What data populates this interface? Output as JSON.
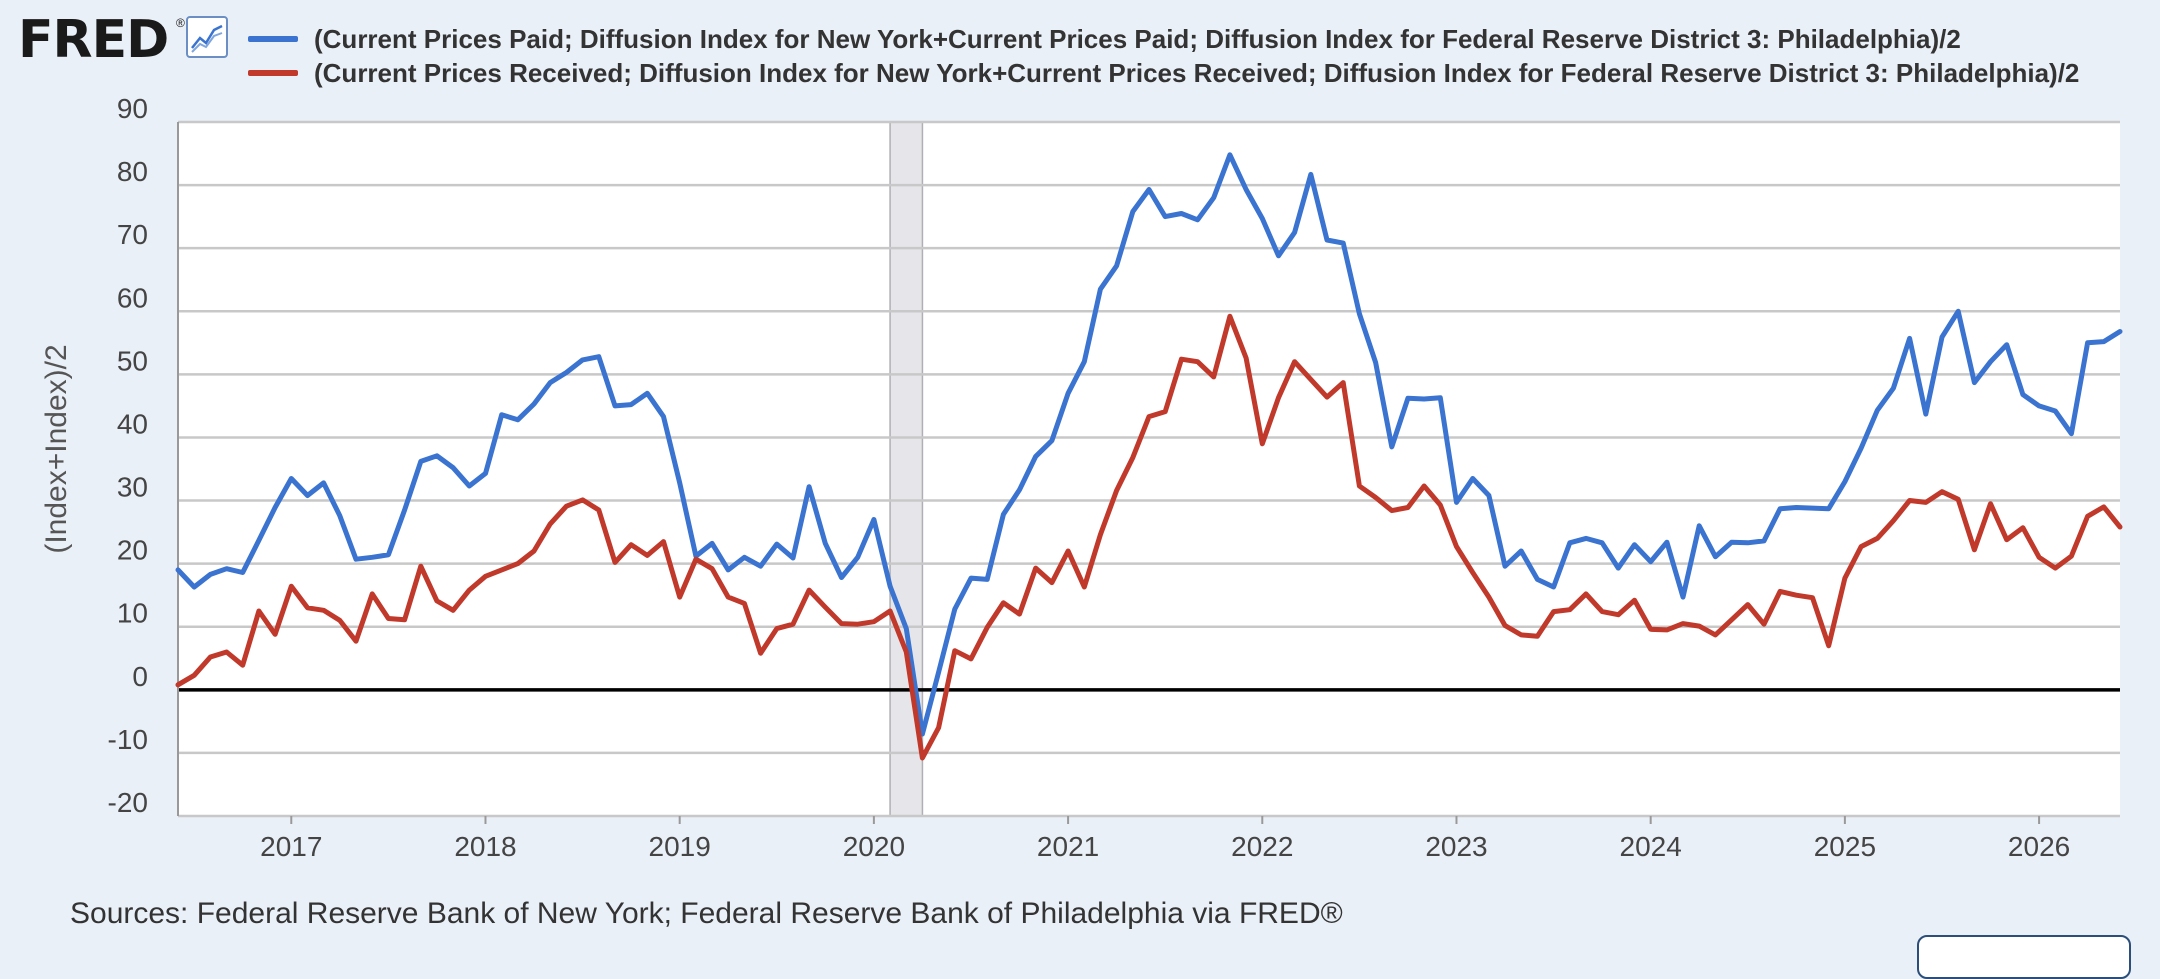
{
  "header": {
    "logo_text": "FRED",
    "registered_mark": "®",
    "graph_icon": "line-graph-icon"
  },
  "colors": {
    "paid": "#3a73d0",
    "received": "#c0392b",
    "grid": "#c8c8c8",
    "plot_bg": "#ffffff",
    "recession": "#e6e6ea",
    "page_bg": "#eaf0f8"
  },
  "chart_data": {
    "type": "line",
    "title": "",
    "xlabel": "",
    "ylabel": "(Index+Index)/2",
    "ylim": [
      -20,
      90
    ],
    "yticks": [
      90,
      80,
      70,
      60,
      50,
      40,
      30,
      20,
      10,
      0,
      -10,
      -20
    ],
    "xlim": [
      "2016-06-01",
      "2026-06-01"
    ],
    "xticks": [
      "2017",
      "2018",
      "2019",
      "2020",
      "2021",
      "2022",
      "2023",
      "2024",
      "2025",
      "2026"
    ],
    "grid": true,
    "zero_line": true,
    "legend_position": "top",
    "recession_shading": [
      {
        "start": "2020-02-01",
        "end": "2020-04-01"
      }
    ],
    "series": [
      {
        "name": "(Current Prices Paid; Diffusion Index for New York+Current Prices Paid; Diffusion Index for Federal Reserve District 3: Philadelphia)/2",
        "color": "#3a73d0",
        "start": "2016-06",
        "values": [
          19.0,
          16.3,
          18.3,
          19.2,
          18.6,
          23.7,
          28.9,
          33.5,
          30.8,
          32.8,
          27.6,
          20.7,
          21.0,
          21.4,
          28.5,
          36.2,
          37.1,
          35.2,
          32.3,
          34.3,
          43.6,
          42.8,
          45.3,
          48.7,
          50.3,
          52.3,
          52.8,
          45.0,
          45.2,
          47.0,
          43.3,
          32.8,
          21.2,
          23.2,
          19.0,
          21.0,
          19.6,
          23.1,
          20.9,
          32.2,
          23.2,
          17.8,
          21.0,
          27.0,
          16.4,
          9.7,
          -7.0,
          2.8,
          12.8,
          17.7,
          17.5,
          27.8,
          31.7,
          37.0,
          39.5,
          47.0,
          52.0,
          63.5,
          67.2,
          75.8,
          79.3,
          75.0,
          75.5,
          74.5,
          78.0,
          84.8,
          79.3,
          74.7,
          68.8,
          72.5,
          81.7,
          71.3,
          70.8,
          59.6,
          51.9,
          38.5,
          46.2,
          46.1,
          46.3,
          29.7,
          33.5,
          30.8,
          19.6,
          22.0,
          17.5,
          16.3,
          23.3,
          24.0,
          23.3,
          19.3,
          23.0,
          20.3,
          23.4,
          14.7,
          26.0,
          21.1,
          23.4,
          23.3,
          23.6,
          28.7,
          28.9,
          28.8,
          28.7,
          33.0,
          38.3,
          44.3,
          47.8,
          55.7,
          43.7,
          55.9,
          60.0,
          48.7,
          52.0,
          54.7,
          46.8,
          45.0,
          44.2,
          40.6,
          55.0,
          55.2,
          56.8
        ]
      },
      {
        "name": "(Current Prices Received; Diffusion Index for New York+Current Prices Received; Diffusion Index for Federal Reserve District 3: Philadelphia)/2",
        "color": "#c0392b",
        "start": "2016-06",
        "values": [
          0.8,
          2.3,
          5.2,
          6.0,
          3.9,
          12.5,
          8.8,
          16.4,
          13.0,
          12.6,
          11.0,
          7.7,
          15.2,
          11.3,
          11.1,
          19.6,
          14.1,
          12.6,
          15.8,
          18.0,
          19.0,
          20.0,
          22.0,
          26.3,
          29.1,
          30.1,
          28.5,
          20.2,
          23.0,
          21.3,
          23.5,
          14.7,
          20.7,
          19.2,
          14.7,
          13.7,
          5.8,
          9.7,
          10.4,
          15.8,
          13.1,
          10.5,
          10.4,
          10.8,
          12.5,
          6.0,
          -10.8,
          -6.0,
          6.2,
          4.9,
          9.9,
          13.8,
          12.0,
          19.3,
          17.0,
          22.0,
          16.3,
          24.6,
          31.6,
          36.8,
          43.3,
          44.1,
          52.4,
          52.0,
          49.6,
          59.2,
          52.6,
          39.0,
          46.3,
          52.0,
          49.2,
          46.4,
          48.7,
          32.3,
          30.5,
          28.4,
          28.9,
          32.3,
          29.3,
          22.7,
          18.6,
          14.7,
          10.2,
          8.7,
          8.5,
          12.4,
          12.7,
          15.2,
          12.4,
          11.9,
          14.2,
          9.6,
          9.5,
          10.5,
          10.1,
          8.7,
          11.1,
          13.5,
          10.4,
          15.6,
          15.0,
          14.6,
          7.0,
          17.7,
          22.7,
          24.0,
          26.8,
          30.0,
          29.7,
          31.4,
          30.2,
          22.2,
          29.5,
          23.8,
          25.7,
          21.0,
          19.3,
          21.2,
          27.5,
          29.0,
          25.8
        ]
      }
    ]
  },
  "footer": {
    "sources": "Sources: Federal Reserve Bank of New York; Federal Reserve Bank of Philadelphia via FRED®"
  }
}
